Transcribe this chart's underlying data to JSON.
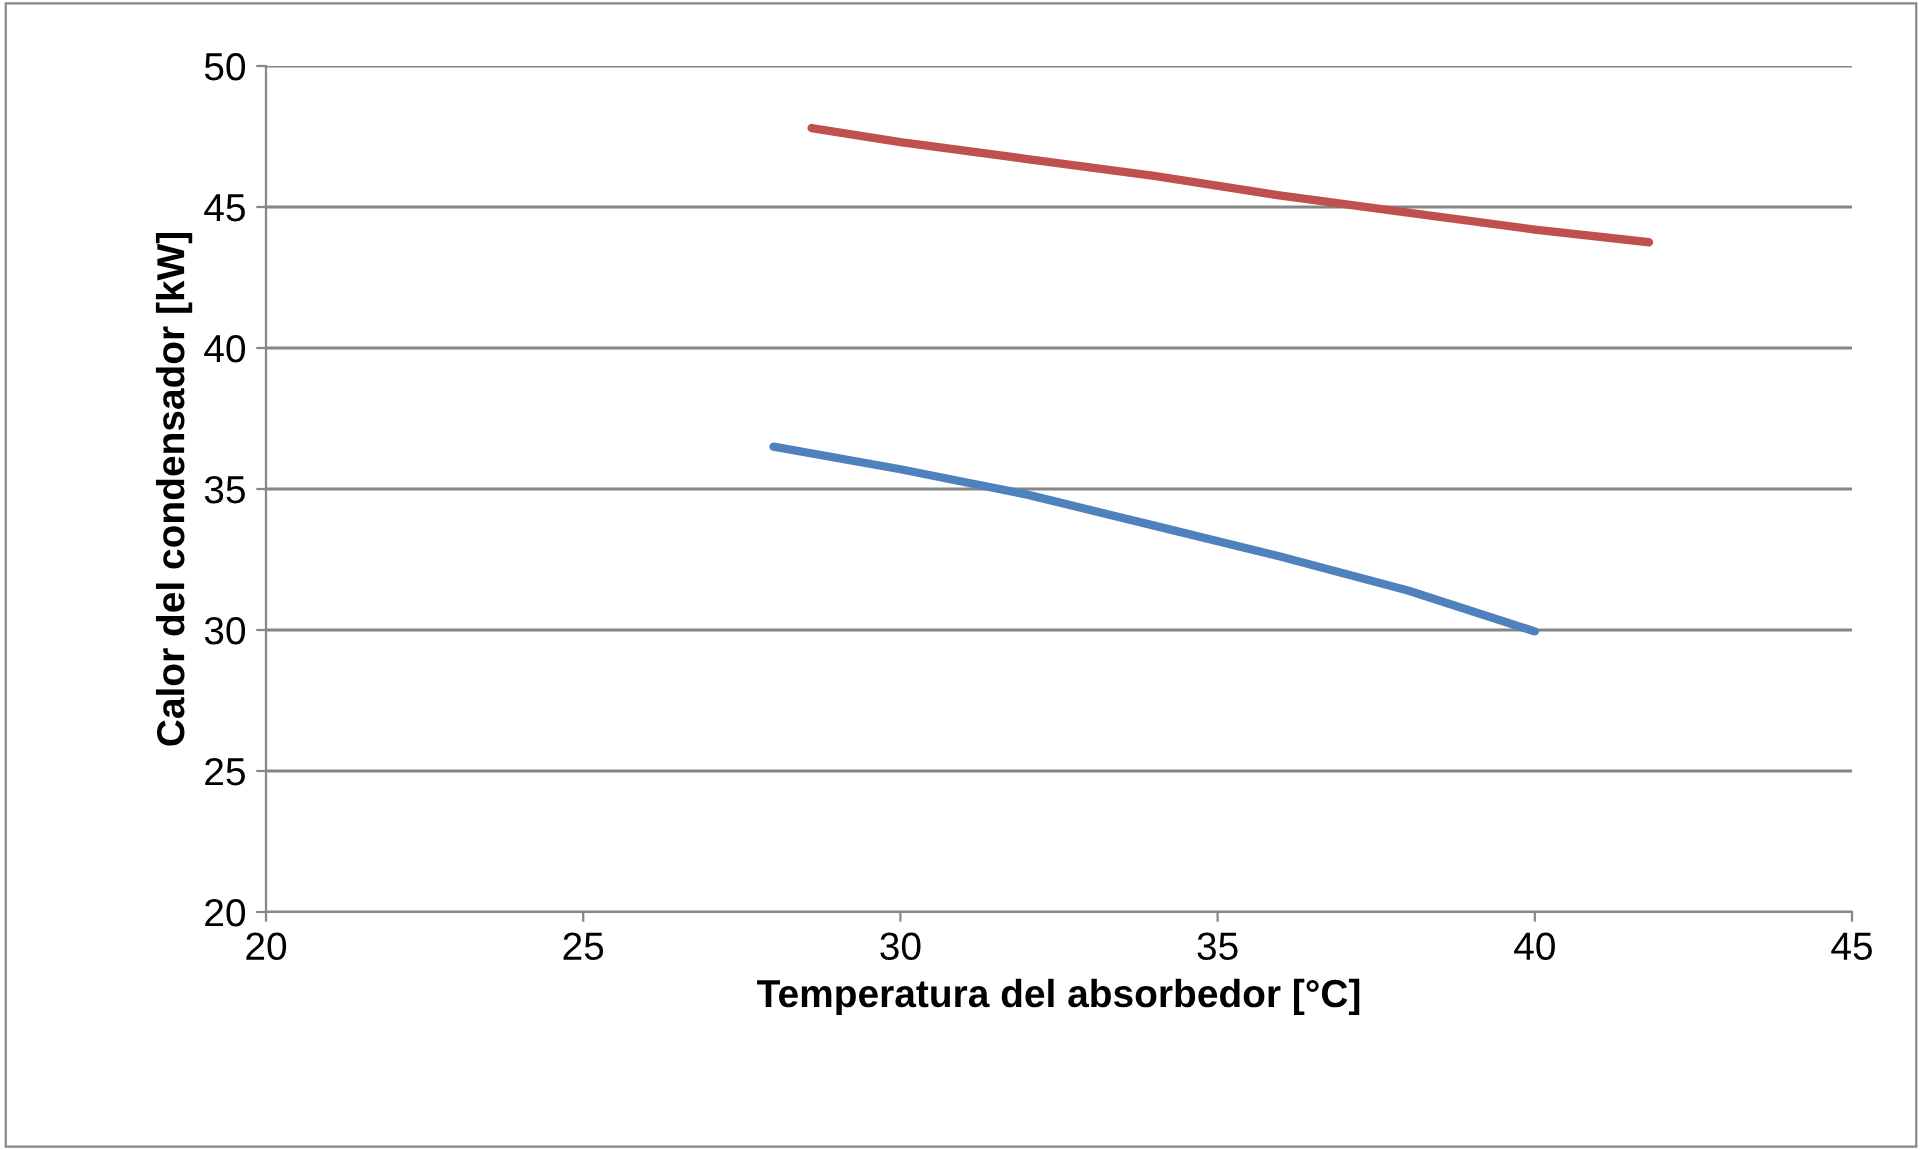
{
  "chart_data": {
    "type": "line",
    "xlabel": "Temperatura del absorbedor [°C]",
    "ylabel": "Calor del condensador [kW]",
    "series": [
      {
        "color": "#4f81bd",
        "x": [
          28,
          30,
          32,
          34,
          36,
          38,
          40
        ],
        "values": [
          36.5,
          35.7,
          34.8,
          33.7,
          32.6,
          31.4,
          29.95
        ]
      },
      {
        "color": "#c0504d",
        "x": [
          28.6,
          30,
          32,
          34,
          36,
          38,
          40,
          41.8
        ],
        "values": [
          47.8,
          47.3,
          46.7,
          46.1,
          45.4,
          44.8,
          44.2,
          43.75
        ]
      }
    ],
    "xlim": [
      20,
      45
    ],
    "xticks": [
      20,
      25,
      30,
      35,
      40,
      45
    ],
    "ylim": [
      20,
      50
    ],
    "yticks": [
      20,
      25,
      30,
      35,
      40,
      45,
      50
    ],
    "grid": "y",
    "marker": "none",
    "line_style": "solid",
    "legend": false
  }
}
